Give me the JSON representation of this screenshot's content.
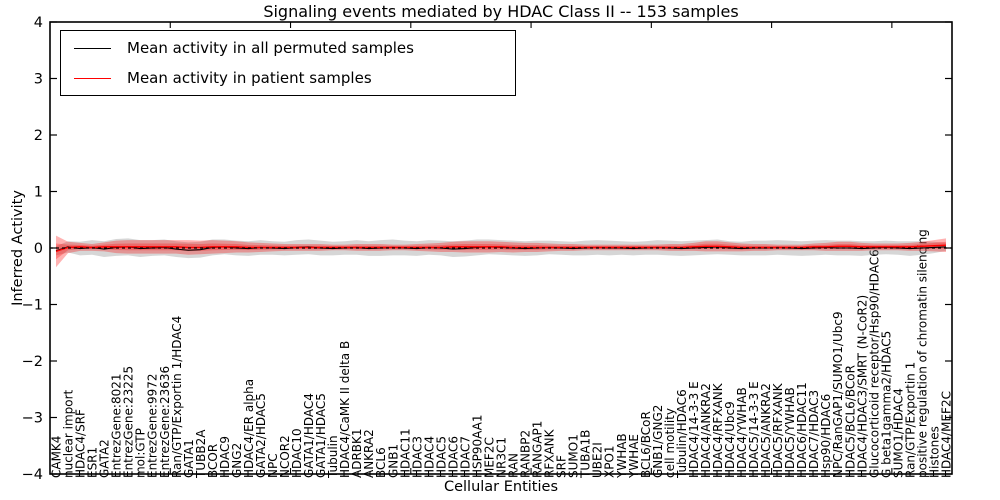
{
  "title": "Signaling events mediated by HDAC Class II -- 153 samples",
  "axes": {
    "xlabel": "Cellular Entities",
    "ylabel": "Inferred Activity",
    "ylim": [
      -4,
      4
    ],
    "yticks": [
      -4,
      -3,
      -2,
      -1,
      0,
      1,
      2,
      3,
      4
    ]
  },
  "legend": {
    "entries": [
      {
        "label": "Mean activity in all permuted samples",
        "color": "#000000"
      },
      {
        "label": "Mean activity in patient samples",
        "color": "#ff0000"
      }
    ]
  },
  "colors": {
    "permuted_line": "#000000",
    "patient_line": "#ff0000",
    "permuted_band": "#888888",
    "patient_band": "#ff0000",
    "zero_line": "#000000",
    "frame": "#000000"
  },
  "chart_data": {
    "type": "line",
    "title": "Signaling events mediated by HDAC Class II -- 153 samples",
    "xlabel": "Cellular Entities",
    "ylabel": "Inferred Activity",
    "ylim": [
      -4,
      4
    ],
    "yticks": [
      -4,
      -3,
      -2,
      -1,
      0,
      1,
      2,
      3,
      4
    ],
    "legend_position": "upper left",
    "grid": false,
    "categories": [
      "CAMK4",
      "nuclear import",
      "HDAC4/SRF",
      "ESR1",
      "GATA2",
      "EntrezGene:8021",
      "EntrezGene:23225",
      "mol:GTP",
      "EntrezGene:9972",
      "EntrezGene:23636",
      "Ran/GTP/Exportin 1/HDAC4",
      "GATA1",
      "TUBB2A",
      "BCOR",
      "HDAC9",
      "GNG2",
      "HDAC4/ER alpha",
      "GATA2/HDAC5",
      "NPC",
      "NCOR2",
      "HDAC10",
      "GATA1/HDAC4",
      "GATA1/HDAC5",
      "Tubulin",
      "HDAC4/CaMK II delta B",
      "ADRBK1",
      "ANKRA2",
      "BCL6",
      "GNB1",
      "HDAC11",
      "HDAC3",
      "HDAC4",
      "HDAC5",
      "HDAC6",
      "HDAC7",
      "HSP90AA1",
      "MEF2C",
      "NR3C1",
      "RAN",
      "RANBP2",
      "RANGAP1",
      "RFXANK",
      "SRF",
      "SUMO1",
      "TUBA1B",
      "UBE2I",
      "XPO1",
      "YWHAB",
      "YWHAE",
      "BCL6/BCoR",
      "GNB1/GNG2",
      "cell motility",
      "Tubulin/HDAC6",
      "HDAC4/14-3-3 E",
      "HDAC4/ANKRA2",
      "HDAC4/RFXANK",
      "HDAC4/Ubc9",
      "HDAC4/YWHAB",
      "HDAC5/14-3-3 E",
      "HDAC5/ANKRA2",
      "HDAC5/RFXANK",
      "HDAC5/YWHAB",
      "HDAC6/HDAC11",
      "HDAC7/HDAC3",
      "Hsp90/HDAC6",
      "NPC/RanGAP1/SUMO1/Ubc9",
      "HDAC5/BCL6/BCoR",
      "HDAC4/HDAC3/SMRT (N-CoR2)",
      "Glucocorticoid receptor/Hsp90/HDAC6",
      "G beta1gamma2/HDAC5",
      "SUMO1/HDAC4",
      "Ran/GTP/Exportin 1",
      "positive regulation of chromatin silencing",
      "Histones",
      "HDAC4/MEF2C"
    ],
    "series": [
      {
        "name": "Mean activity in all permuted samples",
        "mean": [
          -0.05,
          0.02,
          -0.01,
          0.01,
          -0.02,
          0.01,
          0.02,
          -0.01,
          0.0,
          0.01,
          -0.02,
          -0.04,
          -0.03,
          0.01,
          0.02,
          0.0,
          -0.01,
          0.01,
          0.0,
          -0.01,
          0.01,
          0.02,
          0.0,
          -0.01,
          0.0,
          0.01,
          -0.01,
          0.0,
          0.01,
          0.0,
          -0.01,
          0.01,
          0.0,
          -0.02,
          -0.01,
          0.01,
          0.02,
          0.01,
          0.0,
          -0.01,
          0.0,
          0.01,
          0.0,
          -0.01,
          0.0,
          0.01,
          0.0,
          0.0,
          -0.01,
          0.0,
          0.01,
          0.0,
          -0.01,
          0.0,
          0.01,
          0.02,
          0.0,
          -0.01,
          0.0,
          0.0,
          0.01,
          0.0,
          -0.01,
          0.0,
          0.01,
          0.0,
          0.0,
          -0.01,
          0.0,
          0.01,
          0.0,
          -0.01,
          0.0,
          0.01,
          0.02
        ],
        "std": [
          0.08,
          0.1,
          0.12,
          0.13,
          0.14,
          0.15,
          0.15,
          0.15,
          0.14,
          0.14,
          0.14,
          0.14,
          0.14,
          0.14,
          0.13,
          0.13,
          0.13,
          0.13,
          0.12,
          0.12,
          0.13,
          0.13,
          0.13,
          0.12,
          0.12,
          0.13,
          0.13,
          0.14,
          0.14,
          0.13,
          0.13,
          0.13,
          0.13,
          0.14,
          0.14,
          0.14,
          0.13,
          0.13,
          0.13,
          0.13,
          0.13,
          0.12,
          0.12,
          0.12,
          0.13,
          0.13,
          0.13,
          0.12,
          0.12,
          0.12,
          0.13,
          0.13,
          0.13,
          0.13,
          0.13,
          0.13,
          0.12,
          0.12,
          0.13,
          0.13,
          0.13,
          0.13,
          0.13,
          0.13,
          0.13,
          0.13,
          0.13,
          0.13,
          0.12,
          0.12,
          0.12,
          0.13,
          0.12,
          0.1,
          0.07
        ]
      },
      {
        "name": "Mean activity in patient samples",
        "mean": [
          -0.06,
          0.01,
          0.02,
          0.01,
          0.02,
          0.02,
          0.02,
          0.02,
          0.02,
          0.02,
          0.02,
          0.01,
          0.01,
          0.02,
          0.02,
          0.02,
          0.01,
          0.01,
          0.01,
          0.01,
          0.01,
          0.01,
          0.01,
          0.01,
          0.01,
          0.01,
          0.01,
          0.01,
          0.01,
          0.01,
          0.01,
          0.01,
          0.01,
          0.02,
          0.02,
          0.02,
          0.02,
          0.02,
          0.01,
          0.01,
          0.01,
          0.01,
          0.01,
          0.01,
          0.01,
          0.01,
          0.01,
          0.01,
          0.01,
          0.01,
          0.01,
          0.01,
          0.01,
          0.02,
          0.03,
          0.03,
          0.02,
          0.01,
          0.01,
          0.01,
          0.01,
          0.01,
          0.01,
          0.02,
          0.02,
          0.03,
          0.03,
          0.02,
          0.02,
          0.02,
          0.02,
          0.02,
          0.03,
          0.04,
          0.05
        ],
        "std": [
          0.28,
          0.1,
          0.07,
          0.06,
          0.08,
          0.11,
          0.12,
          0.12,
          0.12,
          0.12,
          0.12,
          0.13,
          0.12,
          0.12,
          0.11,
          0.1,
          0.09,
          0.08,
          0.07,
          0.06,
          0.06,
          0.06,
          0.06,
          0.05,
          0.05,
          0.06,
          0.06,
          0.06,
          0.05,
          0.05,
          0.06,
          0.07,
          0.08,
          0.09,
          0.1,
          0.1,
          0.1,
          0.09,
          0.09,
          0.08,
          0.08,
          0.07,
          0.06,
          0.06,
          0.05,
          0.05,
          0.05,
          0.05,
          0.05,
          0.05,
          0.05,
          0.06,
          0.06,
          0.07,
          0.09,
          0.09,
          0.08,
          0.07,
          0.06,
          0.06,
          0.05,
          0.05,
          0.05,
          0.06,
          0.07,
          0.08,
          0.08,
          0.07,
          0.06,
          0.06,
          0.06,
          0.07,
          0.08,
          0.1,
          0.12
        ]
      }
    ]
  }
}
